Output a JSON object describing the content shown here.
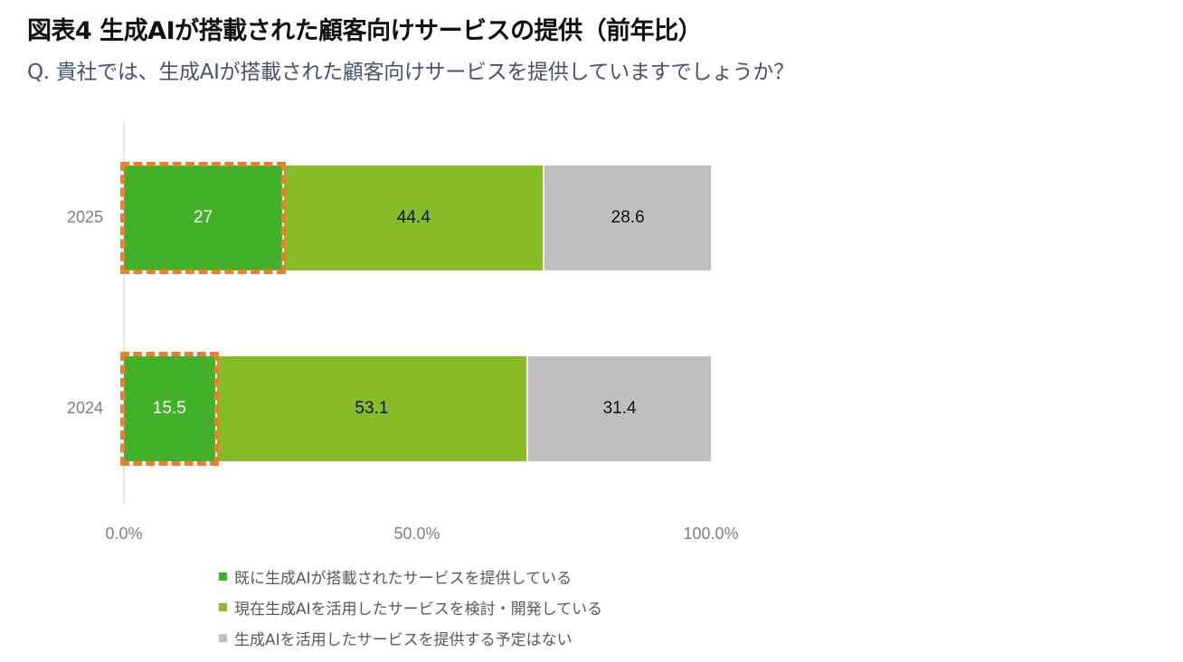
{
  "header": {
    "title": "図表4 生成AIが搭載された顧客向けサービスの提供（前年比）",
    "subtitle": "Q. 貴社では、生成AIが搭載された顧客向けサービスを提供していますでしょうか？"
  },
  "colors": {
    "series": [
      "#43b02a",
      "#86bc25",
      "#bfbfbf"
    ],
    "highlight": "#ed7d31"
  },
  "chart_data": {
    "type": "bar",
    "orientation": "horizontal",
    "stacked": "100%",
    "title": "図表4 生成AIが搭載された顧客向けサービスの提供（前年比）",
    "subtitle": "Q. 貴社では、生成AIが搭載された顧客向けサービスを提供していますでしょうか？",
    "categories": [
      "2025",
      "2024"
    ],
    "series": [
      {
        "name": "既に生成AIが搭載されたサービスを提供している",
        "values": [
          27,
          15.5
        ],
        "labels": [
          "27",
          "15.5"
        ]
      },
      {
        "name": "現在生成AIを活用したサービスを検討・開発している",
        "values": [
          44.4,
          53.1
        ],
        "labels": [
          "44.4",
          "53.1"
        ]
      },
      {
        "name": "生成AIを活用したサービスを提供する予定はない",
        "values": [
          28.6,
          31.4
        ],
        "labels": [
          "28.6",
          "31.4"
        ]
      }
    ],
    "xlabel": "",
    "ylabel": "",
    "xlim": [
      0,
      100
    ],
    "x_ticks": [
      "0.0%",
      "50.0%",
      "100.0%"
    ],
    "grid": false,
    "legend_position": "bottom",
    "annotations": [
      "Orange dashed boxes highlight the first segment (既に提供している) in both years"
    ]
  }
}
